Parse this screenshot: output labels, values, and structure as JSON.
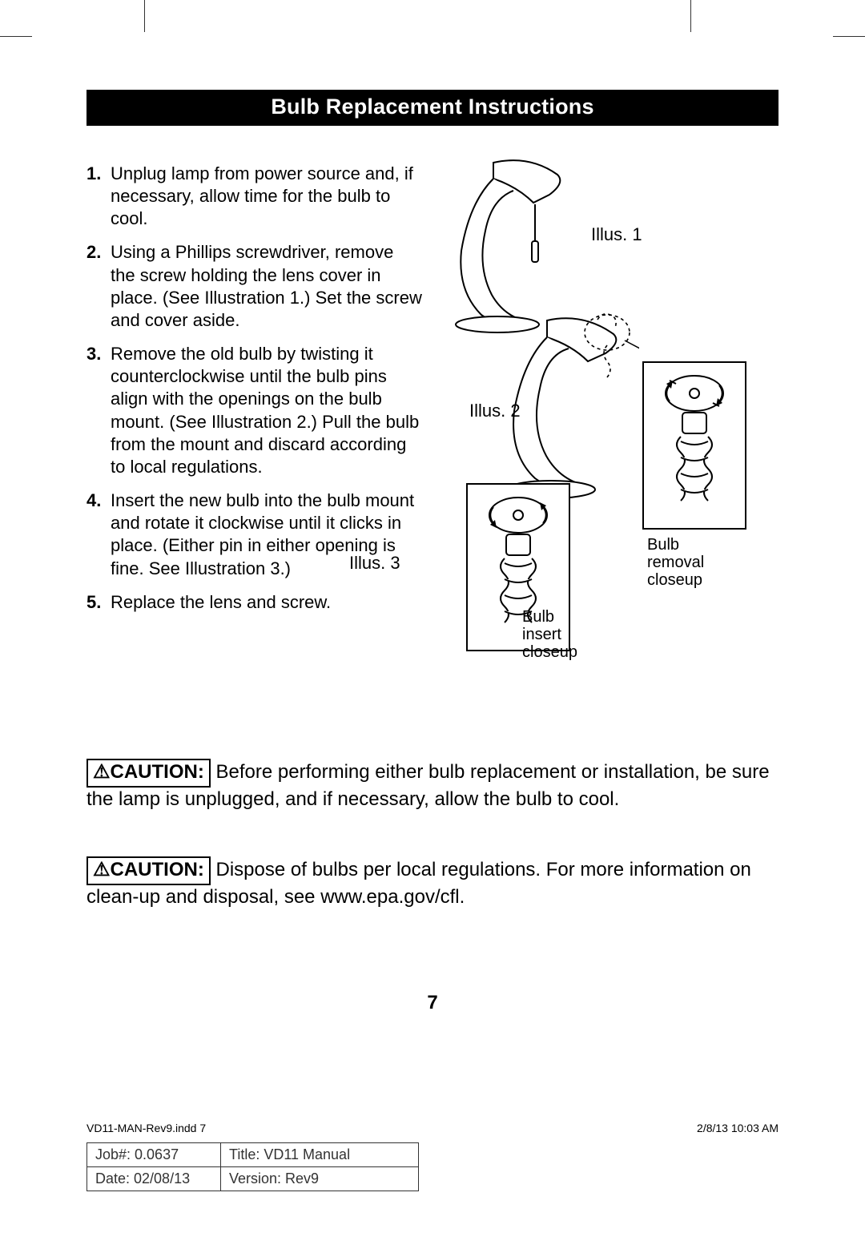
{
  "title": "Bulb Replacement Instructions",
  "steps": [
    "Unplug lamp from power source and, if necessary, allow time for the bulb to cool.",
    "Using a Phillips screwdriver, remove the screw holding the lens cover in place. (See Illustration 1.) Set the screw and cover aside.",
    "Remove the old bulb by twisting it counterclockwise until the bulb pins align with the openings on the bulb mount. (See Illustration 2.) Pull the bulb from the mount and discard according to local regulations.",
    "Insert the new bulb into the bulb mount and rotate it clockwise until it clicks in place. (Either pin in either opening is fine. See Illustration 3.)",
    "Replace the lens and screw."
  ],
  "illus_labels": {
    "i1": "Illus. 1",
    "i2": "Illus. 2",
    "i3": "Illus. 3",
    "removal": "Bulb\nremoval\ncloseup",
    "insert": "Bulb\ninsert\ncloseup"
  },
  "caution_label": "CAUTION:",
  "cautions": [
    "Before performing either bulb replacement or installation, be sure the lamp is unplugged, and if necessary, allow the bulb to cool.",
    "Dispose of bulbs per local regulations. For more information on clean-up and disposal, see www.epa.gov/cfl."
  ],
  "page_number": "7",
  "footer": {
    "file": "VD11-MAN-Rev9.indd   7",
    "timestamp": "2/8/13   10:03 AM",
    "meta": {
      "job_label": "Job#: 0.0637",
      "title_label": "Title: VD11 Manual",
      "date_label": "Date: 02/08/13",
      "version_label": "Version: Rev9"
    }
  },
  "colors": {
    "bg": "#ffffff",
    "ink": "#000000",
    "title_bg": "#000000",
    "title_fg": "#ffffff"
  }
}
